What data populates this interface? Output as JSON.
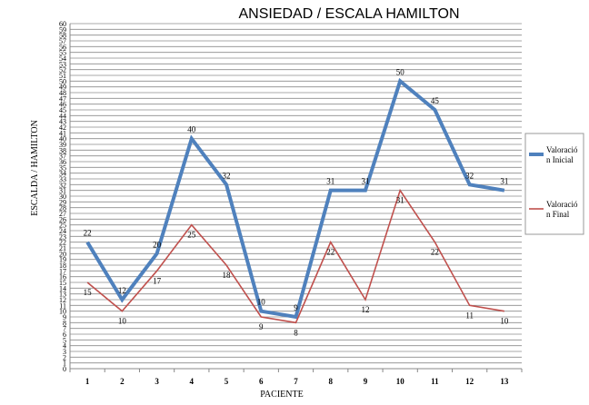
{
  "chart_data": {
    "type": "line",
    "title": "ANSIEDAD / ESCALA HAMILTON",
    "xlabel": "PACIENTE",
    "ylabel": "ESCALDA / HAMILTON",
    "ylim": [
      0,
      60
    ],
    "ytick_step": 1,
    "categories": [
      "1",
      "2",
      "3",
      "4",
      "5",
      "6",
      "7",
      "8",
      "9",
      "10",
      "11",
      "12",
      "13"
    ],
    "grid": true,
    "legend": "right",
    "series": [
      {
        "name": "Valoración Inicial",
        "legend_lines": [
          "Valoració",
          "n Inicial"
        ],
        "color": "#4F81BD",
        "values": [
          22,
          12,
          20,
          40,
          32,
          10,
          9,
          31,
          31,
          50,
          45,
          32,
          31
        ]
      },
      {
        "name": "Valoración Final",
        "legend_lines": [
          "Valoració",
          "n Final"
        ],
        "color": "#C0504D",
        "values": [
          15,
          10,
          17,
          25,
          18,
          9,
          8,
          22,
          12,
          31,
          22,
          11,
          10
        ]
      }
    ]
  }
}
